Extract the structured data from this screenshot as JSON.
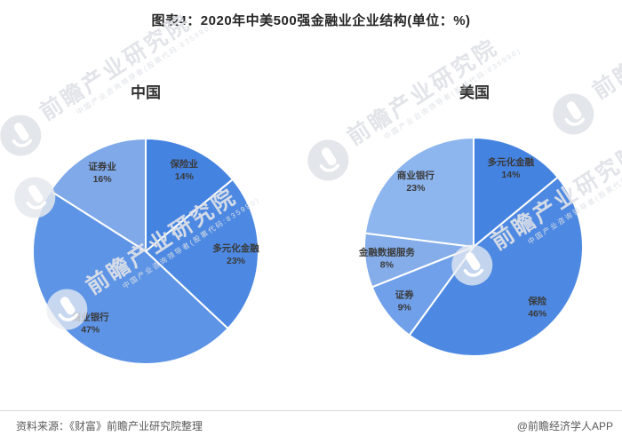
{
  "title": "图表4：2020年中美500强金融业企业结构(单位：%)",
  "footer": {
    "source": "资料来源：《财富》前瞻产业研究院整理",
    "credit": "@前瞻经济学人APP"
  },
  "watermark": {
    "text": "前瞻产业研究院",
    "subtext": "中国产业咨询领导者(股票代码:835990)"
  },
  "label_color": "#3a3a3a",
  "divider_color": "#d9d9d9",
  "chart_data": [
    {
      "type": "pie",
      "title": "中国",
      "unit": "%",
      "start_angle_deg": 0,
      "direction": "clockwise",
      "categories": [
        "保险业",
        "多元化金融",
        "商业银行",
        "证券业"
      ],
      "values": [
        14,
        23,
        47,
        16
      ],
      "colors": [
        "#4583e1",
        "#4d89e2",
        "#5d94e6",
        "#80a9ea"
      ]
    },
    {
      "type": "pie",
      "title": "美国",
      "unit": "%",
      "start_angle_deg": 0,
      "direction": "clockwise",
      "categories": [
        "多元化金融",
        "保险",
        "证券",
        "金融数据服务",
        "商业银行"
      ],
      "values": [
        14,
        46,
        9,
        8,
        23
      ],
      "colors": [
        "#4583e1",
        "#4d89e2",
        "#6fa0e9",
        "#84ade9",
        "#8db5ee"
      ]
    }
  ]
}
